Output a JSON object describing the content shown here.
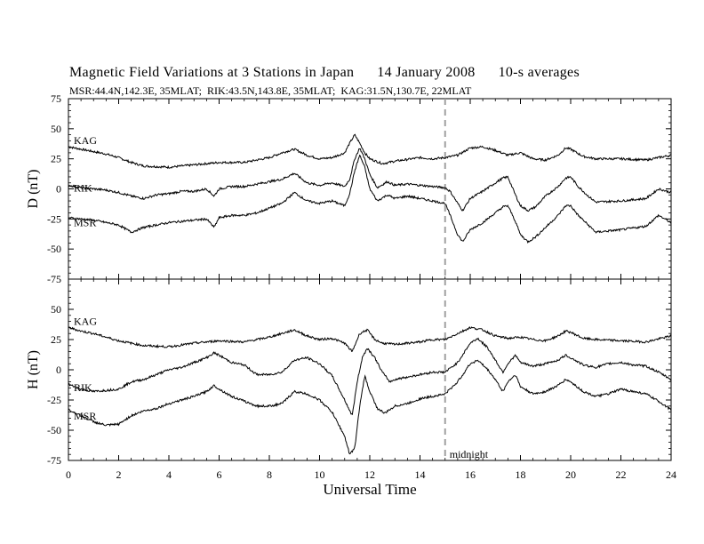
{
  "header": {
    "title": "Magnetic Field Variations at 3 Stations in Japan",
    "date": "14 January 2008",
    "averaging": "10-s averages",
    "stations_line": "MSR:44.4N,142.3E, 35MLAT;  RIK:43.5N,143.8E, 35MLAT;  KAG:31.5N,130.7E, 22MLAT"
  },
  "chart_data": [
    {
      "type": "line",
      "panel": "D",
      "ylabel": "D (nT)",
      "xlim": [
        0,
        24
      ],
      "ylim": [
        -75,
        75
      ],
      "yticks": [
        -75,
        -50,
        -25,
        0,
        25,
        50,
        75
      ],
      "xticks": [
        0,
        2,
        4,
        6,
        8,
        10,
        12,
        14,
        16,
        18,
        20,
        22,
        24
      ],
      "marker_line": {
        "x": 15,
        "style": "dashed",
        "color": "#a0a0a0"
      },
      "series": [
        {
          "name": "KAG",
          "x": [
            0,
            0.5,
            1,
            1.5,
            2,
            2.5,
            3,
            4,
            5,
            6,
            7,
            8,
            8.5,
            9,
            9.5,
            10,
            10.5,
            11,
            11.2,
            11.4,
            11.6,
            11.8,
            12,
            12.5,
            13,
            14,
            14.5,
            15,
            15.5,
            16,
            16.5,
            17,
            17.5,
            18,
            18.5,
            19,
            19.5,
            19.8,
            20,
            20.5,
            21,
            22,
            23,
            24
          ],
          "y": [
            35,
            33,
            31,
            29,
            26,
            22,
            19,
            18,
            20,
            22,
            22,
            26,
            30,
            33,
            28,
            25,
            26,
            30,
            38,
            45,
            38,
            30,
            25,
            21,
            23,
            26,
            25,
            26,
            28,
            34,
            35,
            32,
            28,
            30,
            25,
            24,
            28,
            34,
            33,
            27,
            25,
            25,
            24,
            28
          ]
        },
        {
          "name": "RIK",
          "x": [
            0,
            0.5,
            1,
            1.5,
            2,
            2.5,
            3,
            3.5,
            4,
            4.5,
            5,
            5.5,
            5.8,
            6,
            6.5,
            7,
            7.5,
            8,
            8.5,
            9,
            9.5,
            10,
            10.5,
            11,
            11.2,
            11.4,
            11.6,
            11.8,
            12,
            12.3,
            12.7,
            13,
            13.5,
            14,
            14.5,
            15,
            15.2,
            15.5,
            15.7,
            16,
            16.5,
            17,
            17.3,
            17.5,
            17.8,
            18,
            18.3,
            18.6,
            19,
            19.5,
            19.8,
            20,
            20.3,
            20.7,
            21,
            22,
            23,
            23.5,
            24
          ],
          "y": [
            3,
            1,
            0,
            -1,
            -3,
            -6,
            -8,
            -5,
            -4,
            -2,
            -2,
            0,
            -6,
            0,
            2,
            2,
            4,
            6,
            8,
            13,
            5,
            3,
            5,
            2,
            8,
            25,
            34,
            25,
            12,
            1,
            6,
            3,
            4,
            3,
            2,
            1,
            -2,
            -12,
            -18,
            -8,
            -2,
            5,
            9,
            10,
            -5,
            -14,
            -18,
            -15,
            -6,
            2,
            9,
            10,
            2,
            -6,
            -11,
            -10,
            -8,
            0,
            -3
          ]
        },
        {
          "name": "MSR",
          "x": [
            0,
            0.5,
            1,
            1.5,
            2,
            2.5,
            3,
            3.5,
            4,
            4.5,
            5,
            5.5,
            5.8,
            6,
            6.5,
            7,
            7.5,
            8,
            8.5,
            9,
            9.5,
            10,
            10.5,
            11,
            11.2,
            11.4,
            11.6,
            11.8,
            12,
            12.3,
            12.7,
            13,
            13.5,
            14,
            14.5,
            15,
            15.2,
            15.5,
            15.7,
            16,
            16.5,
            17,
            17.3,
            17.5,
            17.8,
            18,
            18.3,
            18.6,
            19,
            19.5,
            19.8,
            20,
            20.3,
            20.7,
            21,
            22,
            23,
            23.5,
            24
          ],
          "y": [
            -24,
            -25,
            -26,
            -28,
            -30,
            -36,
            -32,
            -30,
            -28,
            -27,
            -26,
            -25,
            -32,
            -24,
            -22,
            -22,
            -20,
            -16,
            -12,
            -3,
            -10,
            -12,
            -10,
            -14,
            -4,
            15,
            28,
            18,
            0,
            -10,
            -5,
            -8,
            -6,
            -8,
            -10,
            -12,
            -22,
            -38,
            -44,
            -34,
            -28,
            -20,
            -15,
            -14,
            -27,
            -38,
            -44,
            -40,
            -32,
            -22,
            -14,
            -14,
            -22,
            -30,
            -36,
            -34,
            -31,
            -22,
            -28
          ]
        }
      ],
      "label_positions": [
        {
          "series": "KAG",
          "text": "KAG"
        },
        {
          "series": "RIK",
          "text": "RIK"
        },
        {
          "series": "MSR",
          "text": "MSR"
        }
      ]
    },
    {
      "type": "line",
      "panel": "H",
      "ylabel": "H (nT)",
      "xlabel": "Universal Time",
      "xlim": [
        0,
        24
      ],
      "ylim": [
        -75,
        75
      ],
      "yticks": [
        -75,
        -50,
        -25,
        0,
        25,
        50,
        75
      ],
      "xticks": [
        0,
        2,
        4,
        6,
        8,
        10,
        12,
        14,
        16,
        18,
        20,
        22,
        24
      ],
      "marker_line": {
        "x": 15,
        "style": "dashed",
        "color": "#a0a0a0",
        "label": "midnight"
      },
      "series": [
        {
          "name": "KAG",
          "x": [
            0,
            0.5,
            1,
            1.5,
            2,
            2.5,
            3,
            4,
            5,
            6,
            7,
            8,
            8.5,
            9,
            9.5,
            10,
            10.5,
            11,
            11.3,
            11.6,
            11.9,
            12.2,
            12.5,
            13,
            14,
            14.5,
            15,
            15.5,
            16,
            16.5,
            17,
            17.5,
            18,
            18.5,
            19,
            19.5,
            19.8,
            20,
            20.5,
            21,
            22,
            23,
            24
          ],
          "y": [
            35,
            32,
            30,
            27,
            24,
            22,
            20,
            19,
            22,
            24,
            23,
            27,
            30,
            33,
            28,
            25,
            26,
            22,
            15,
            30,
            33,
            25,
            22,
            21,
            23,
            25,
            25,
            30,
            35,
            33,
            28,
            26,
            27,
            25,
            24,
            28,
            32,
            31,
            26,
            25,
            24,
            23,
            28
          ]
        },
        {
          "name": "RIK",
          "x": [
            0,
            0.5,
            1,
            1.5,
            2,
            2.5,
            3,
            3.5,
            4,
            4.5,
            5,
            5.5,
            5.8,
            6,
            6.5,
            7,
            7.5,
            8,
            8.5,
            9,
            9.5,
            10,
            10.5,
            11,
            11.3,
            11.5,
            11.7,
            11.9,
            12.2,
            12.5,
            12.8,
            13,
            13.5,
            14,
            14.5,
            15,
            15.5,
            16,
            16.3,
            16.7,
            17,
            17.3,
            17.5,
            17.8,
            18,
            18.5,
            19,
            19.5,
            19.8,
            20,
            20.5,
            21,
            21.5,
            22,
            22.5,
            23,
            23.5,
            24
          ],
          "y": [
            -12,
            -16,
            -18,
            -17,
            -16,
            -10,
            -8,
            -4,
            0,
            2,
            6,
            10,
            14,
            12,
            6,
            4,
            -4,
            -4,
            -2,
            8,
            10,
            5,
            -5,
            -25,
            -38,
            -10,
            10,
            18,
            10,
            -2,
            -10,
            -8,
            -6,
            -4,
            -2,
            -2,
            6,
            22,
            26,
            18,
            8,
            -2,
            5,
            12,
            6,
            3,
            5,
            8,
            12,
            10,
            4,
            2,
            5,
            6,
            4,
            3,
            -2,
            -8
          ]
        },
        {
          "name": "MSR",
          "x": [
            0,
            0.5,
            1,
            1.5,
            2,
            2.5,
            3,
            3.5,
            4,
            4.5,
            5,
            5.5,
            5.8,
            6,
            6.5,
            7,
            7.5,
            8,
            8.5,
            9,
            9.5,
            10,
            10.5,
            11,
            11.2,
            11.4,
            11.6,
            11.8,
            12,
            12.3,
            12.6,
            13,
            13.5,
            14,
            14.5,
            15,
            15.5,
            16,
            16.3,
            16.7,
            17,
            17.3,
            17.5,
            17.8,
            18,
            18.5,
            19,
            19.5,
            19.8,
            20,
            20.5,
            21,
            21.5,
            22,
            22.5,
            23,
            23.5,
            24
          ],
          "y": [
            -33,
            -38,
            -43,
            -46,
            -45,
            -38,
            -34,
            -32,
            -28,
            -25,
            -22,
            -18,
            -13,
            -16,
            -22,
            -26,
            -30,
            -30,
            -28,
            -18,
            -20,
            -25,
            -35,
            -55,
            -70,
            -65,
            -30,
            -5,
            -18,
            -32,
            -36,
            -30,
            -28,
            -24,
            -22,
            -20,
            -10,
            5,
            8,
            0,
            -8,
            -18,
            -10,
            -4,
            -14,
            -20,
            -18,
            -13,
            -8,
            -10,
            -18,
            -22,
            -20,
            -16,
            -18,
            -20,
            -26,
            -33
          ]
        }
      ],
      "label_positions": [
        {
          "series": "KAG",
          "text": "KAG"
        },
        {
          "series": "RIK",
          "text": "RIK"
        },
        {
          "series": "MSR",
          "text": "MSR"
        }
      ]
    }
  ]
}
